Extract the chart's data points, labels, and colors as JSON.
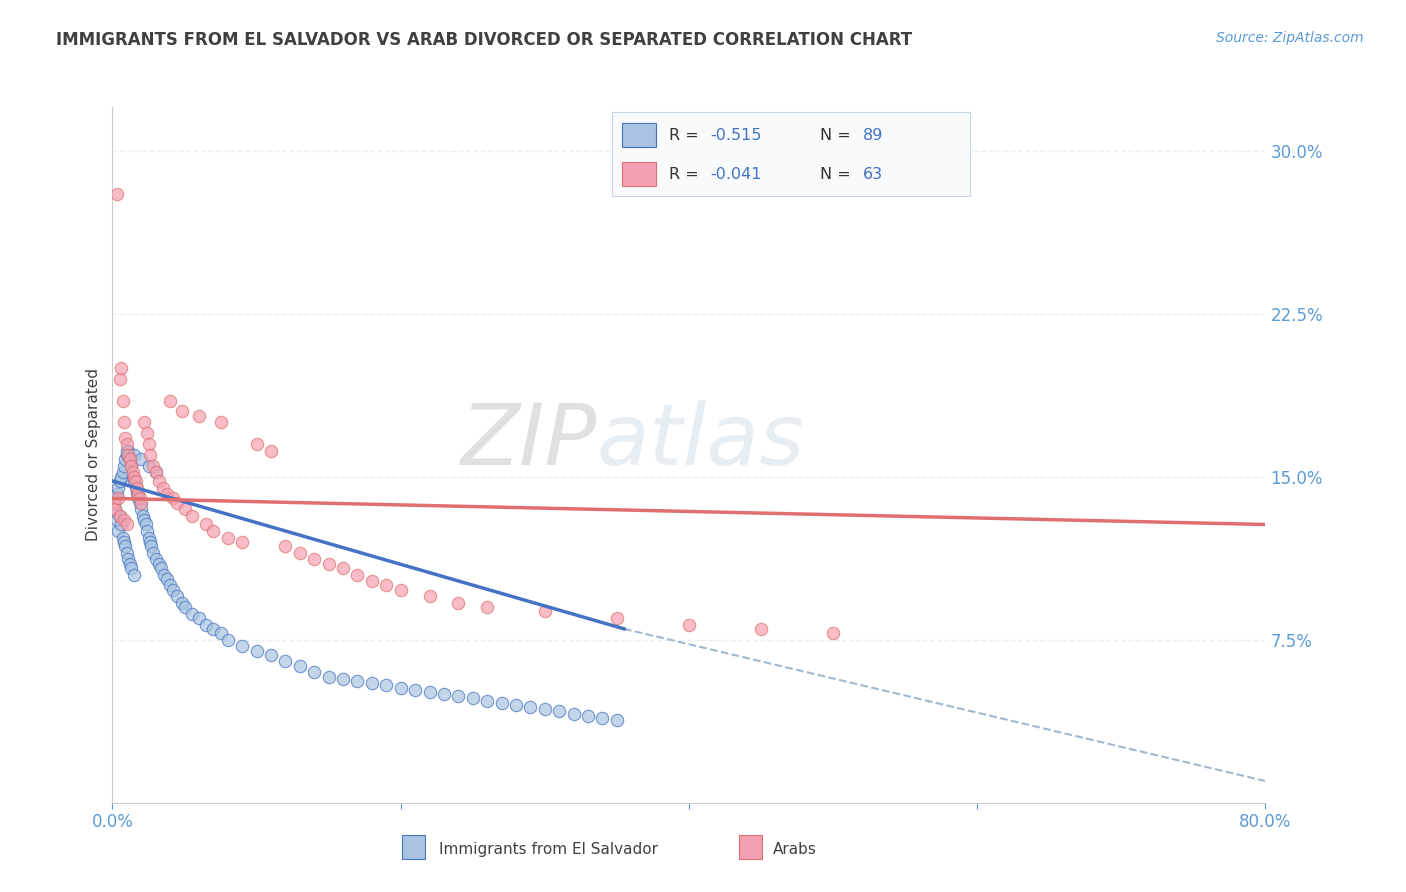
{
  "title": "IMMIGRANTS FROM EL SALVADOR VS ARAB DIVORCED OR SEPARATED CORRELATION CHART",
  "source": "Source: ZipAtlas.com",
  "ylabel": "Divorced or Separated",
  "legend_labels": [
    "Immigrants from El Salvador",
    "Arabs"
  ],
  "watermark": "ZIPatlas",
  "xlim": [
    0.0,
    0.8
  ],
  "ylim": [
    0.0,
    0.32
  ],
  "xticks": [
    0.0,
    0.2,
    0.4,
    0.6,
    0.8
  ],
  "xticklabels": [
    "0.0%",
    "",
    "",
    "",
    "80.0%"
  ],
  "yticks_right": [
    0.075,
    0.15,
    0.225,
    0.3
  ],
  "ytick_labels_right": [
    "7.5%",
    "15.0%",
    "22.5%",
    "30.0%"
  ],
  "scatter_blue_x": [
    0.001,
    0.002,
    0.002,
    0.003,
    0.003,
    0.004,
    0.004,
    0.005,
    0.005,
    0.006,
    0.006,
    0.007,
    0.007,
    0.008,
    0.008,
    0.009,
    0.009,
    0.01,
    0.01,
    0.011,
    0.011,
    0.012,
    0.012,
    0.013,
    0.013,
    0.014,
    0.015,
    0.015,
    0.016,
    0.017,
    0.018,
    0.019,
    0.02,
    0.021,
    0.022,
    0.023,
    0.024,
    0.025,
    0.026,
    0.027,
    0.028,
    0.03,
    0.032,
    0.034,
    0.036,
    0.038,
    0.04,
    0.042,
    0.045,
    0.048,
    0.05,
    0.055,
    0.06,
    0.065,
    0.07,
    0.075,
    0.08,
    0.09,
    0.1,
    0.11,
    0.12,
    0.13,
    0.14,
    0.15,
    0.16,
    0.17,
    0.18,
    0.19,
    0.2,
    0.21,
    0.22,
    0.23,
    0.24,
    0.25,
    0.26,
    0.27,
    0.28,
    0.29,
    0.3,
    0.31,
    0.32,
    0.33,
    0.34,
    0.35,
    0.01,
    0.015,
    0.02,
    0.025,
    0.03
  ],
  "scatter_blue_y": [
    0.138,
    0.14,
    0.135,
    0.142,
    0.13,
    0.145,
    0.125,
    0.148,
    0.132,
    0.15,
    0.128,
    0.152,
    0.122,
    0.155,
    0.12,
    0.158,
    0.118,
    0.16,
    0.115,
    0.162,
    0.112,
    0.158,
    0.11,
    0.155,
    0.108,
    0.15,
    0.148,
    0.105,
    0.145,
    0.142,
    0.14,
    0.138,
    0.135,
    0.132,
    0.13,
    0.128,
    0.125,
    0.122,
    0.12,
    0.118,
    0.115,
    0.112,
    0.11,
    0.108,
    0.105,
    0.103,
    0.1,
    0.098,
    0.095,
    0.092,
    0.09,
    0.087,
    0.085,
    0.082,
    0.08,
    0.078,
    0.075,
    0.072,
    0.07,
    0.068,
    0.065,
    0.063,
    0.06,
    0.058,
    0.057,
    0.056,
    0.055,
    0.054,
    0.053,
    0.052,
    0.051,
    0.05,
    0.049,
    0.048,
    0.047,
    0.046,
    0.045,
    0.044,
    0.043,
    0.042,
    0.041,
    0.04,
    0.039,
    0.038,
    0.162,
    0.16,
    0.158,
    0.155,
    0.152
  ],
  "scatter_pink_x": [
    0.001,
    0.002,
    0.003,
    0.004,
    0.005,
    0.005,
    0.006,
    0.007,
    0.008,
    0.008,
    0.009,
    0.01,
    0.01,
    0.011,
    0.012,
    0.013,
    0.014,
    0.015,
    0.016,
    0.017,
    0.018,
    0.019,
    0.02,
    0.022,
    0.024,
    0.025,
    0.026,
    0.028,
    0.03,
    0.032,
    0.035,
    0.038,
    0.04,
    0.042,
    0.045,
    0.048,
    0.05,
    0.055,
    0.06,
    0.065,
    0.07,
    0.075,
    0.08,
    0.09,
    0.1,
    0.11,
    0.12,
    0.13,
    0.14,
    0.15,
    0.16,
    0.17,
    0.18,
    0.19,
    0.2,
    0.22,
    0.24,
    0.26,
    0.3,
    0.35,
    0.4,
    0.45,
    0.5
  ],
  "scatter_pink_y": [
    0.138,
    0.135,
    0.28,
    0.14,
    0.195,
    0.132,
    0.2,
    0.185,
    0.175,
    0.13,
    0.168,
    0.165,
    0.128,
    0.16,
    0.158,
    0.155,
    0.152,
    0.15,
    0.148,
    0.145,
    0.142,
    0.14,
    0.138,
    0.175,
    0.17,
    0.165,
    0.16,
    0.155,
    0.152,
    0.148,
    0.145,
    0.142,
    0.185,
    0.14,
    0.138,
    0.18,
    0.135,
    0.132,
    0.178,
    0.128,
    0.125,
    0.175,
    0.122,
    0.12,
    0.165,
    0.162,
    0.118,
    0.115,
    0.112,
    0.11,
    0.108,
    0.105,
    0.102,
    0.1,
    0.098,
    0.095,
    0.092,
    0.09,
    0.088,
    0.085,
    0.082,
    0.08,
    0.078
  ],
  "blue_line_x": [
    0.0,
    0.355
  ],
  "blue_line_y": [
    0.148,
    0.08
  ],
  "pink_line_x": [
    0.0,
    0.8
  ],
  "pink_line_y": [
    0.14,
    0.128
  ],
  "dash_line_x": [
    0.355,
    0.8
  ],
  "dash_line_y": [
    0.08,
    0.01
  ],
  "blue_color": "#a8c4e0",
  "pink_color": "#f4a0b0",
  "blue_line_color": "#4472c4",
  "pink_line_color": "#e07070",
  "dash_color": "#a0b8d0",
  "watermark_color": "#dce8f0",
  "title_color": "#404040",
  "axis_label_color": "#5b9bd5",
  "tick_color": "#5b9bd5",
  "legend_text_color_black": "#333333",
  "legend_text_color_blue": "#4472c4",
  "grid_color": "#e8eef4",
  "background_color": "#ffffff",
  "legend_r1": "R = -0.515",
  "legend_n1": "N = 89",
  "legend_r2": "R = -0.041",
  "legend_n2": "N = 63"
}
